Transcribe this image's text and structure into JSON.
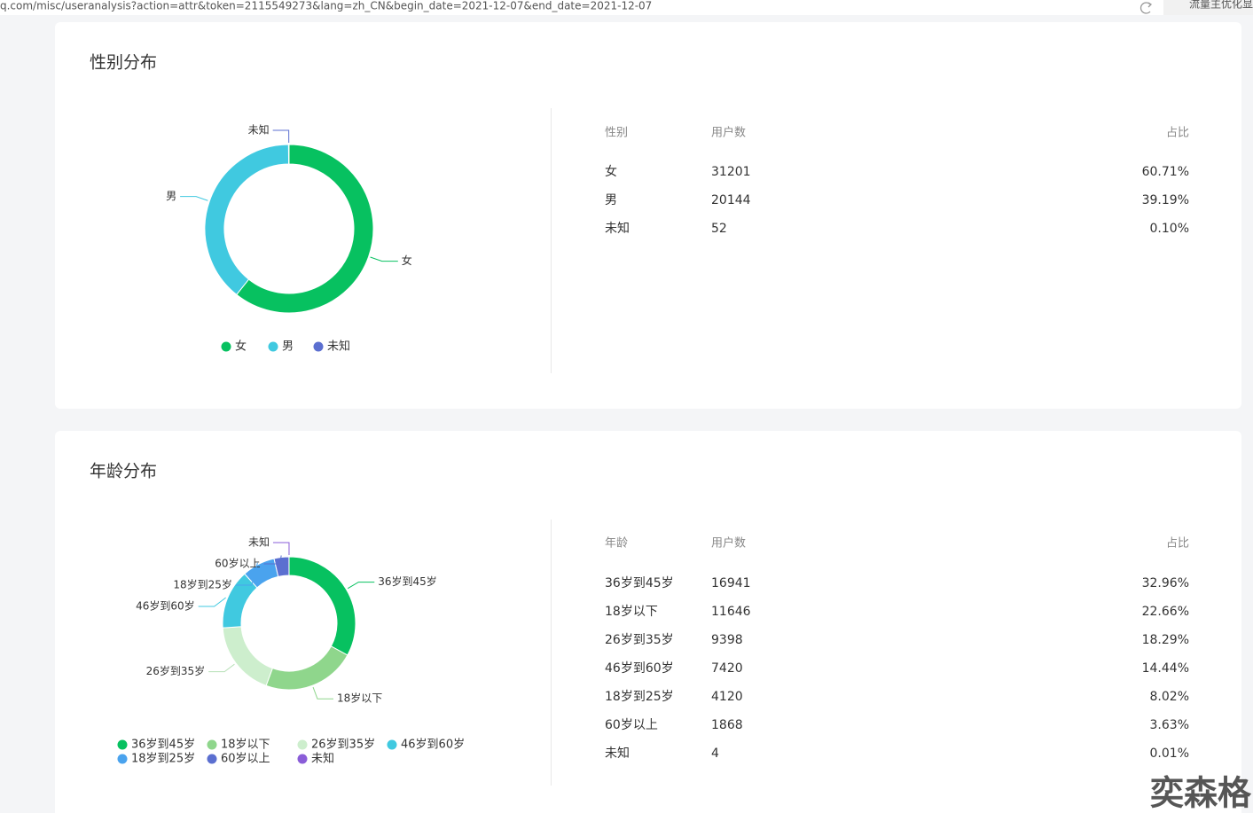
{
  "browser": {
    "url": "q.com/misc/useranalysis?action=attr&token=2115549273&lang=zh_CN&begin_date=2021-12-07&end_date=2021-12-07",
    "side_text": "流量主优化显"
  },
  "chart_data": [
    {
      "type": "pie",
      "donut": true,
      "title": "性别分布",
      "categories": [
        "女",
        "男",
        "未知"
      ],
      "values": [
        60.71,
        39.19,
        0.1
      ],
      "value_labels": [
        "60.71%",
        "39.19%",
        "0.10%"
      ],
      "colors": [
        "#07c160",
        "#40c9e0",
        "#5b6fd0"
      ],
      "legend": "bottom"
    },
    {
      "type": "pie",
      "donut": true,
      "title": "年龄分布",
      "categories": [
        "36岁到45岁",
        "18岁以下",
        "26岁到35岁",
        "46岁到60岁",
        "18岁到25岁",
        "60岁以上",
        "未知"
      ],
      "values": [
        32.96,
        22.66,
        18.29,
        14.44,
        8.02,
        3.63,
        0.01
      ],
      "value_labels": [
        "32.96%",
        "22.66%",
        "18.29%",
        "14.44%",
        "8.02%",
        "3.63%",
        "0.01%"
      ],
      "colors": [
        "#07c160",
        "#8fd68c",
        "#cdeecd",
        "#40c9e0",
        "#4aa3ee",
        "#5b6fd0",
        "#8a5dd8"
      ],
      "legend": "bottom"
    }
  ],
  "tables": [
    {
      "headers": [
        "性别",
        "用户数",
        "占比"
      ],
      "counts": [
        31201,
        20144,
        52
      ]
    },
    {
      "headers": [
        "年龄",
        "用户数",
        "占比"
      ],
      "counts": [
        16941,
        11646,
        9398,
        7420,
        4120,
        1868,
        4
      ]
    }
  ],
  "watermark": "奕森格"
}
